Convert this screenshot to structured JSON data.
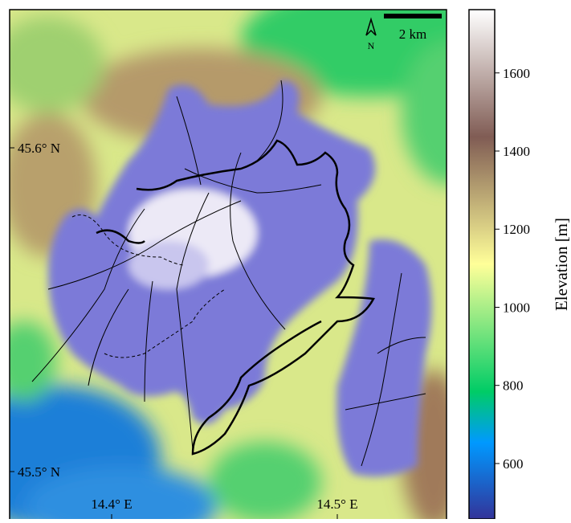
{
  "map": {
    "lat_labels": [
      "45.6° N",
      "45.5° N"
    ],
    "lon_labels": [
      "14.4° E",
      "14.5° E"
    ],
    "north": "N",
    "scale": "2 km"
  },
  "colorbar": {
    "label": "Elevation [m]",
    "lim": [
      458,
      1762
    ],
    "ticks": [
      600,
      800,
      1000,
      1200,
      1400,
      1600
    ]
  }
}
